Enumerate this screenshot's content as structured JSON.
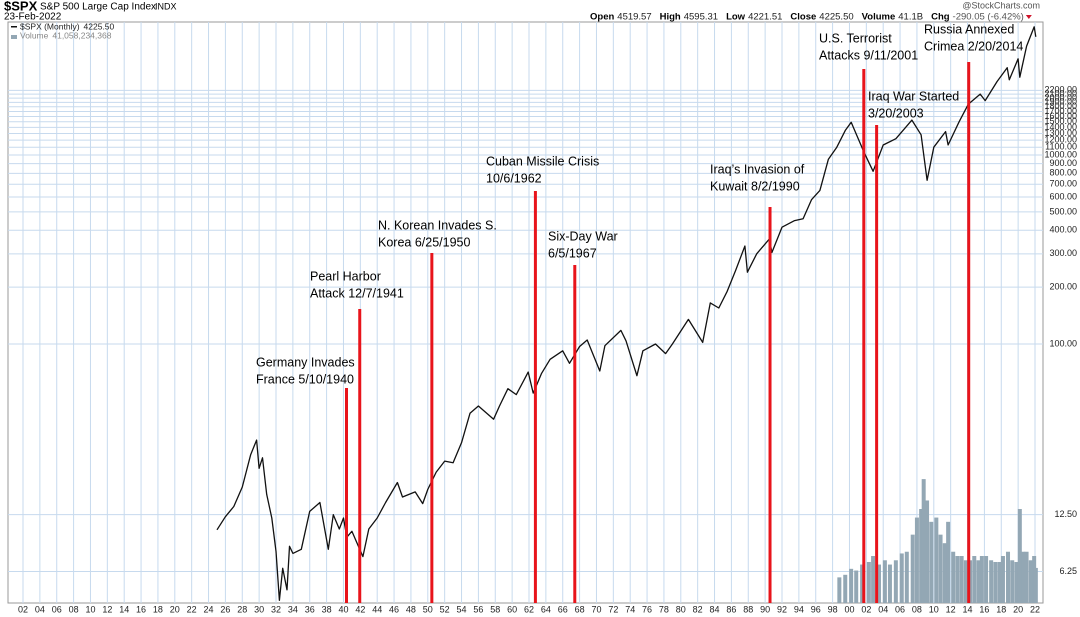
{
  "header": {
    "symbol": "$SPX",
    "name": "S&P 500 Large Cap Index",
    "exchange": "INDX",
    "date": "23-Feb-2022",
    "brand": "@StockCharts.com",
    "stats": [
      {
        "label": "Open",
        "value": "4519.57"
      },
      {
        "label": "High",
        "value": "4595.31"
      },
      {
        "label": "Low",
        "value": "4221.51"
      },
      {
        "label": "Close",
        "value": "4225.50"
      },
      {
        "label": "Volume",
        "value": "41.1B"
      },
      {
        "label": "Chg",
        "value": "-290.05 (-6.42%)"
      }
    ]
  },
  "chart_data": {
    "type": "line",
    "log_scale": true,
    "grid": true,
    "series": [
      {
        "name": "$SPX (Monthly)",
        "legend_value": "4225.50",
        "color": "#111111",
        "x": [
          1925,
          1926,
          1927,
          1928,
          1929,
          1929.7,
          1930.0,
          1930.4,
          1930.9,
          1931.5,
          1932.0,
          1932.4,
          1932.8,
          1933.3,
          1933.6,
          1934,
          1935,
          1936,
          1937.2,
          1938.2,
          1938.8,
          1939.5,
          1940.0,
          1940.4,
          1941,
          1942.3,
          1943,
          1944,
          1945,
          1946.4,
          1947,
          1948.5,
          1949.4,
          1950,
          1951,
          1952,
          1953,
          1954,
          1955,
          1956,
          1957.8,
          1958.5,
          1959.5,
          1960.5,
          1961.9,
          1962.5,
          1963.5,
          1964.5,
          1966,
          1966.8,
          1968,
          1968.9,
          1970.4,
          1971,
          1972.9,
          1973.5,
          1974.8,
          1975.5,
          1977,
          1978.2,
          1979,
          1980.9,
          1982.6,
          1983.5,
          1984.5,
          1985.5,
          1986.5,
          1987.6,
          1987.9,
          1989,
          1990.5,
          1990.8,
          1992,
          1993.5,
          1994.5,
          1995.5,
          1996.5,
          1997.5,
          1998.5,
          1999.5,
          2000.2,
          2001.7,
          2002.8,
          2004,
          2005.5,
          2007.4,
          2008.5,
          2009.2,
          2010,
          2011.4,
          2011.7,
          2013,
          2014.1,
          2015.5,
          2016.1,
          2017.5,
          2018.7,
          2018.95,
          2020.0,
          2020.2,
          2021.0,
          2021.9,
          2022.1
        ],
        "values": [
          10.4,
          12.2,
          13.8,
          17.5,
          26,
          31,
          22,
          25,
          16,
          12,
          8,
          4.4,
          6.5,
          5,
          8.5,
          7.8,
          8.2,
          13,
          14.5,
          8.2,
          12.5,
          10.5,
          12,
          9.5,
          10.2,
          7.5,
          10.5,
          12,
          14.5,
          18.5,
          15.5,
          16.5,
          14.3,
          17,
          21,
          24,
          23.5,
          30,
          43,
          47,
          40,
          47,
          58,
          54,
          71,
          55,
          70,
          83,
          92,
          79,
          97,
          105,
          72,
          98,
          118,
          104,
          68,
          92,
          100,
          89,
          100,
          135,
          102,
          165,
          155,
          190,
          245,
          330,
          240,
          300,
          360,
          305,
          415,
          450,
          460,
          580,
          650,
          950,
          1100,
          1350,
          1490,
          1040,
          820,
          1130,
          1220,
          1530,
          1280,
          735,
          1100,
          1330,
          1130,
          1500,
          1860,
          2100,
          1940,
          2450,
          2900,
          2500,
          3230,
          2580,
          3770,
          4770,
          4225.5
        ]
      },
      {
        "name": "Volume",
        "legend_value": "41,058,234,368",
        "color": "#93a7b4",
        "type": "bar",
        "axis": "y2",
        "x": [
          1998.8,
          1999.5,
          2000.2,
          2000.8,
          2001.5,
          2002.3,
          2002.8,
          2003.5,
          2004.2,
          2004.8,
          2005.5,
          2006.2,
          2006.8,
          2007.5,
          2008.0,
          2008.5,
          2008.8,
          2009.2,
          2009.7,
          2010.3,
          2010.8,
          2011.3,
          2011.7,
          2012.3,
          2012.8,
          2013.3,
          2013.8,
          2014.3,
          2014.8,
          2015.3,
          2015.7,
          2016.2,
          2016.8,
          2017.3,
          2017.8,
          2018.2,
          2018.8,
          2019.3,
          2019.8,
          2020.2,
          2020.6,
          2021.0,
          2021.5,
          2021.9,
          2022.1
        ],
        "values": [
          30000000000,
          33000000000,
          40000000000,
          38000000000,
          45000000000,
          48000000000,
          55000000000,
          45000000000,
          50000000000,
          45000000000,
          50000000000,
          58000000000,
          60000000000,
          80000000000,
          100000000000,
          110000000000,
          145000000000,
          120000000000,
          95000000000,
          100000000000,
          80000000000,
          70000000000,
          95000000000,
          60000000000,
          55000000000,
          55000000000,
          50000000000,
          50000000000,
          55000000000,
          50000000000,
          55000000000,
          55000000000,
          50000000000,
          48000000000,
          48000000000,
          55000000000,
          60000000000,
          50000000000,
          48000000000,
          110000000000,
          60000000000,
          60000000000,
          50000000000,
          55000000000,
          41058234368
        ]
      }
    ],
    "xlim": [
      1902,
      2022
    ],
    "xticks": [
      {
        "value": 1902,
        "label": "02"
      },
      {
        "value": 1904,
        "label": "04"
      },
      {
        "value": 1906,
        "label": "06"
      },
      {
        "value": 1908,
        "label": "08"
      },
      {
        "value": 1910,
        "label": "10"
      },
      {
        "value": 1912,
        "label": "12"
      },
      {
        "value": 1914,
        "label": "14"
      },
      {
        "value": 1916,
        "label": "16"
      },
      {
        "value": 1918,
        "label": "18"
      },
      {
        "value": 1920,
        "label": "20"
      },
      {
        "value": 1922,
        "label": "22"
      },
      {
        "value": 1924,
        "label": "24"
      },
      {
        "value": 1926,
        "label": "26"
      },
      {
        "value": 1928,
        "label": "28"
      },
      {
        "value": 1930,
        "label": "30"
      },
      {
        "value": 1932,
        "label": "32"
      },
      {
        "value": 1934,
        "label": "34"
      },
      {
        "value": 1936,
        "label": "36"
      },
      {
        "value": 1938,
        "label": "38"
      },
      {
        "value": 1940,
        "label": "40"
      },
      {
        "value": 1942,
        "label": "42"
      },
      {
        "value": 1944,
        "label": "44"
      },
      {
        "value": 1946,
        "label": "46"
      },
      {
        "value": 1948,
        "label": "48"
      },
      {
        "value": 1950,
        "label": "50"
      },
      {
        "value": 1952,
        "label": "52"
      },
      {
        "value": 1954,
        "label": "54"
      },
      {
        "value": 1956,
        "label": "56"
      },
      {
        "value": 1958,
        "label": "58"
      },
      {
        "value": 1960,
        "label": "60"
      },
      {
        "value": 1962,
        "label": "62"
      },
      {
        "value": 1964,
        "label": "64"
      },
      {
        "value": 1966,
        "label": "66"
      },
      {
        "value": 1968,
        "label": "68"
      },
      {
        "value": 1970,
        "label": "70"
      },
      {
        "value": 1972,
        "label": "72"
      },
      {
        "value": 1974,
        "label": "74"
      },
      {
        "value": 1976,
        "label": "76"
      },
      {
        "value": 1978,
        "label": "78"
      },
      {
        "value": 1980,
        "label": "80"
      },
      {
        "value": 1982,
        "label": "82"
      },
      {
        "value": 1984,
        "label": "84"
      },
      {
        "value": 1986,
        "label": "86"
      },
      {
        "value": 1988,
        "label": "88"
      },
      {
        "value": 1990,
        "label": "90"
      },
      {
        "value": 1992,
        "label": "92"
      },
      {
        "value": 1994,
        "label": "94"
      },
      {
        "value": 1996,
        "label": "96"
      },
      {
        "value": 1998,
        "label": "98"
      },
      {
        "value": 2000,
        "label": "00"
      },
      {
        "value": 2002,
        "label": "02"
      },
      {
        "value": 2004,
        "label": "04"
      },
      {
        "value": 2006,
        "label": "06"
      },
      {
        "value": 2008,
        "label": "08"
      },
      {
        "value": 2010,
        "label": "10"
      },
      {
        "value": 2012,
        "label": "12"
      },
      {
        "value": 2014,
        "label": "14"
      },
      {
        "value": 2016,
        "label": "16"
      },
      {
        "value": 2018,
        "label": "18"
      },
      {
        "value": 2020,
        "label": "20"
      },
      {
        "value": 2022,
        "label": "22"
      }
    ],
    "ylim": [
      4.26,
      5058
    ],
    "yticks": [
      6.25,
      {
        "value": 12.5,
        "label": "12.50"
      },
      {
        "value": 100,
        "label": "100.00"
      },
      {
        "value": 200,
        "label": "200.00"
      },
      {
        "value": 300,
        "label": "300.00"
      },
      {
        "value": 400,
        "label": "400.00"
      },
      {
        "value": 500,
        "label": "500.00"
      },
      {
        "value": 600,
        "label": "600.00"
      },
      {
        "value": 700,
        "label": "700.00"
      },
      {
        "value": 800,
        "label": "800.00"
      },
      {
        "value": 900,
        "label": "900.00"
      },
      {
        "value": 1000,
        "label": "1000.00"
      },
      {
        "value": 1100,
        "label": "1100.00"
      },
      {
        "value": 1200,
        "label": "1200.00"
      },
      {
        "value": 1300,
        "label": "1300.00"
      },
      {
        "value": 1400,
        "label": "1400.00"
      },
      {
        "value": 1500,
        "label": "1500.00"
      },
      {
        "value": 1600,
        "label": "1600.00"
      },
      {
        "value": 1700,
        "label": "1700.00"
      },
      {
        "value": 1800,
        "label": "1800.00"
      },
      {
        "value": 1900,
        "label": "1900.00"
      },
      {
        "value": 2000,
        "label": "2000.00"
      },
      {
        "value": 2100,
        "label": "2100.00"
      },
      {
        "value": 2200,
        "label": "2200.00"
      }
    ],
    "y2lim": [
      0,
      680000000000
    ],
    "annotations": [
      {
        "lines": [
          "Germany Invades",
          "France 5/10/1940"
        ],
        "x": 1940.36,
        "color": "#e8141b"
      },
      {
        "lines": [
          "Pearl Harbor",
          "Attack 12/7/1941"
        ],
        "x": 1941.93,
        "color": "#e8141b"
      },
      {
        "lines": [
          "N. Korean Invades S.",
          "Korea 6/25/1950"
        ],
        "x": 1950.48,
        "color": "#e8141b"
      },
      {
        "lines": [
          "Cuban Missile Crisis",
          "10/6/1962"
        ],
        "x": 1962.76,
        "color": "#e8141b"
      },
      {
        "lines": [
          "Six-Day War",
          "6/5/1967"
        ],
        "x": 1967.43,
        "color": "#e8141b"
      },
      {
        "lines": [
          "Iraq’s Invasion of",
          "Kuwait 8/2/1990"
        ],
        "x": 1990.58,
        "color": "#e8141b"
      },
      {
        "lines": [
          "U.S. Terrorist",
          "Attacks 9/11/2001"
        ],
        "x": 2001.7,
        "color": "#e8141b"
      },
      {
        "lines": [
          "Iraq War Started",
          "3/20/2003"
        ],
        "x": 2003.22,
        "color": "#e8141b"
      },
      {
        "lines": [
          "Russia Annexed",
          "Crimea 2/20/2014"
        ],
        "x": 2014.14,
        "color": "#e8141b"
      }
    ]
  }
}
